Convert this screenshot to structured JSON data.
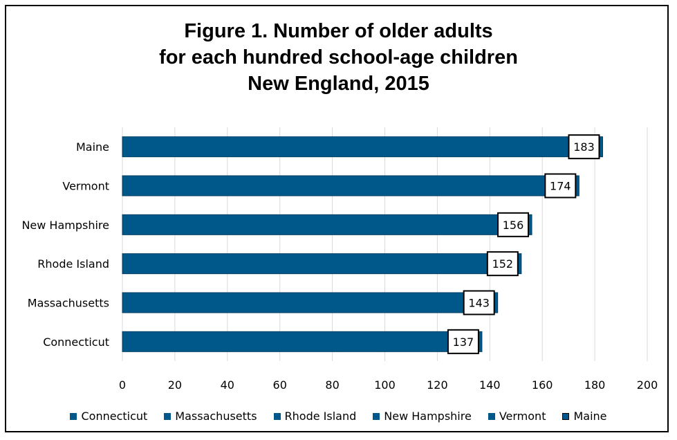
{
  "chart_data": {
    "type": "bar",
    "orientation": "horizontal",
    "title_lines": [
      "Figure 1. Number of older adults",
      "for each hundred school-age children",
      "New England, 2015"
    ],
    "categories": [
      "Maine",
      "Vermont",
      "New Hampshire",
      "Rhode Island",
      "Massachusetts",
      "Connecticut"
    ],
    "values": [
      183,
      174,
      156,
      152,
      143,
      137
    ],
    "data_labels": [
      "183",
      "174",
      "156",
      "152",
      "143",
      "137"
    ],
    "xlim": [
      0,
      200
    ],
    "x_ticks": [
      "0",
      "20",
      "40",
      "60",
      "80",
      "100",
      "120",
      "140",
      "160",
      "180",
      "200"
    ],
    "gridlines": "vertical",
    "legend_position": "bottom",
    "legend": [
      "Connecticut",
      "Massachusetts",
      "Rhode Island",
      "New Hampshire",
      "Vermont",
      "Maine"
    ],
    "colors": {
      "bar": "#00588A",
      "bar_edge": "#003D61",
      "grid": "#D9D9D9",
      "label_box_border": "#000000"
    }
  }
}
